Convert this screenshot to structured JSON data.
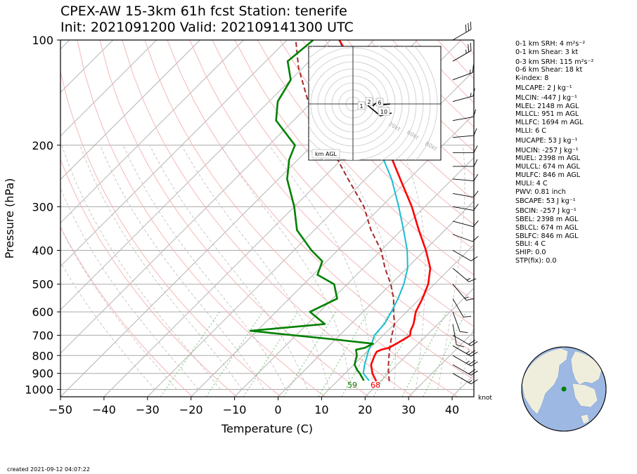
{
  "title_line1": "CPEX-AW 15-3km  61h fcst  Station: tenerife",
  "title_line2": "Init: 2021091200  Valid: 202109141300 UTC",
  "footer": "created 2021-09-12 04:07:22",
  "wind_unit": "knot",
  "indices": [
    "0-1 km SRH: 4 m²s⁻²",
    "0-1 km Shear: 3 kt",
    "0-3 km SRH: 115 m²s⁻²",
    "0-6 km Shear: 18 kt",
    "K-index: 8",
    "MLCAPE: 2 J kg⁻¹",
    "MLCIN: -447 J kg⁻¹",
    "MLEL: 2148 m AGL",
    "MLLCL: 951 m AGL",
    "MLLFC: 1694 m AGL",
    "MLLI: 6 C",
    "MUCAPE: 53 J kg⁻¹",
    "MUCIN: -257 J kg⁻¹",
    "MUEL: 2398 m AGL",
    "MULCL: 674 m AGL",
    "MULFC: 846 m AGL",
    "MULI: 4 C",
    "PWV: 0.81 inch",
    "SBCAPE: 53 J kg⁻¹",
    "SBCIN: -257 J kg⁻¹",
    "SBEL: 2398 m AGL",
    "SBLCL: 674 m AGL",
    "SBLFC: 846 m AGL",
    "SBLI: 4 C",
    "SHIP: 0.0",
    "STP(fix): 0.0"
  ],
  "colors": {
    "temperature": "#ff0000",
    "dewpoint": "#008000",
    "wetbulb": "#17becf",
    "parcel": "#a52a2a",
    "isobar": "#b0b0b0",
    "dry_adiabat": "#f4b8b8",
    "mixing_ratio": "#66bb66",
    "ocean": "#9db8e3",
    "land": "#efeedd"
  },
  "chart_data": {
    "type": "line",
    "subtype": "skew-T log-p",
    "xlabel": "Temperature (C)",
    "ylabel": "Pressure (hPa)",
    "xlim": [
      -50,
      45
    ],
    "ylim": [
      1050,
      100
    ],
    "y_scale": "log",
    "x_ticks": [
      -50,
      -40,
      -30,
      -20,
      -10,
      0,
      10,
      20,
      30,
      40
    ],
    "x_tick_labels": [
      "−50",
      "−40",
      "−30",
      "−20",
      "−10",
      "0",
      "10",
      "20",
      "30",
      "40"
    ],
    "y_ticks": [
      100,
      200,
      300,
      400,
      500,
      600,
      700,
      800,
      900,
      1000
    ],
    "y_tick_labels": [
      "100",
      "200",
      "300",
      "400",
      "500",
      "600",
      "700",
      "800",
      "900",
      "1000"
    ],
    "surface_labels": {
      "temperature": "68",
      "dewpoint": "59"
    },
    "series": [],
    "profiles": {
      "temperature": [
        [
          948,
          19
        ],
        [
          930,
          18
        ],
        [
          900,
          16.3
        ],
        [
          850,
          14
        ],
        [
          800,
          12.7
        ],
        [
          780,
          12.3
        ],
        [
          770,
          12.9
        ],
        [
          760,
          14.2
        ],
        [
          740,
          15
        ],
        [
          710,
          16
        ],
        [
          700,
          16.2
        ],
        [
          680,
          15.3
        ],
        [
          650,
          14.4
        ],
        [
          600,
          12.1
        ],
        [
          550,
          10.6
        ],
        [
          500,
          8.6
        ],
        [
          450,
          5.4
        ],
        [
          400,
          0.3
        ],
        [
          350,
          -6
        ],
        [
          300,
          -13
        ],
        [
          250,
          -22
        ],
        [
          200,
          -33
        ],
        [
          170,
          -40
        ],
        [
          150,
          -46
        ],
        [
          120,
          -58
        ],
        [
          100,
          -68
        ]
      ],
      "dewpoint": [
        [
          944,
          16
        ],
        [
          900,
          13.4
        ],
        [
          880,
          12
        ],
        [
          850,
          10.2
        ],
        [
          800,
          8.6
        ],
        [
          770,
          7.1
        ],
        [
          760,
          8.7
        ],
        [
          740,
          9.6
        ],
        [
          720,
          0
        ],
        [
          680,
          -21.5
        ],
        [
          650,
          -6
        ],
        [
          600,
          -12.2
        ],
        [
          550,
          -9
        ],
        [
          500,
          -13
        ],
        [
          470,
          -19
        ],
        [
          430,
          -21
        ],
        [
          400,
          -26
        ],
        [
          350,
          -34
        ],
        [
          300,
          -40
        ],
        [
          250,
          -48
        ],
        [
          220,
          -52
        ],
        [
          200,
          -54
        ],
        [
          170,
          -64
        ],
        [
          150,
          -68
        ],
        [
          130,
          -70
        ],
        [
          115,
          -75
        ],
        [
          100,
          -74
        ]
      ],
      "wetbulb": [
        [
          944,
          17.2
        ],
        [
          900,
          14.2
        ],
        [
          850,
          12.5
        ],
        [
          800,
          11
        ],
        [
          770,
          10
        ],
        [
          740,
          9.3
        ],
        [
          700,
          8
        ],
        [
          650,
          7.7
        ],
        [
          600,
          6.5
        ],
        [
          550,
          5
        ],
        [
          500,
          3
        ],
        [
          450,
          0.2
        ],
        [
          400,
          -4
        ],
        [
          350,
          -9.5
        ],
        [
          300,
          -16
        ],
        [
          250,
          -24
        ],
        [
          200,
          -35
        ],
        [
          170,
          -42
        ],
        [
          150,
          -48
        ],
        [
          120,
          -59
        ],
        [
          100,
          -68
        ]
      ],
      "parcel": [
        [
          948,
          22
        ],
        [
          900,
          20
        ],
        [
          850,
          18
        ],
        [
          800,
          16
        ],
        [
          750,
          14
        ],
        [
          700,
          12
        ],
        [
          650,
          10
        ],
        [
          600,
          7
        ],
        [
          550,
          4
        ],
        [
          500,
          0
        ],
        [
          450,
          -5
        ],
        [
          400,
          -10
        ],
        [
          350,
          -17
        ],
        [
          300,
          -24
        ],
        [
          250,
          -34
        ],
        [
          200,
          -46
        ],
        [
          150,
          -61
        ],
        [
          120,
          -71
        ],
        [
          100,
          -78
        ]
      ]
    },
    "hodograph": {
      "range_label": "km AGL",
      "speed_rings_kt": [
        "20kt",
        "60kt",
        "80kt"
      ],
      "height_labels": [
        "1",
        "2",
        "6",
        "10"
      ]
    },
    "wind_barbs": [
      {
        "p": 100,
        "dir": 240,
        "spd": 30
      },
      {
        "p": 115,
        "dir": 240,
        "spd": 25
      },
      {
        "p": 130,
        "dir": 250,
        "spd": 15
      },
      {
        "p": 150,
        "dir": 255,
        "spd": 15
      },
      {
        "p": 170,
        "dir": 260,
        "spd": 10
      },
      {
        "p": 190,
        "dir": 265,
        "spd": 10
      },
      {
        "p": 210,
        "dir": 270,
        "spd": 10
      },
      {
        "p": 230,
        "dir": 270,
        "spd": 10
      },
      {
        "p": 250,
        "dir": 275,
        "spd": 10
      },
      {
        "p": 275,
        "dir": 280,
        "spd": 10
      },
      {
        "p": 300,
        "dir": 280,
        "spd": 10
      },
      {
        "p": 330,
        "dir": 285,
        "spd": 10
      },
      {
        "p": 360,
        "dir": 290,
        "spd": 10
      },
      {
        "p": 400,
        "dir": 300,
        "spd": 10
      },
      {
        "p": 450,
        "dir": 310,
        "spd": 15
      },
      {
        "p": 500,
        "dir": 320,
        "spd": 15
      },
      {
        "p": 550,
        "dir": 330,
        "spd": 10
      },
      {
        "p": 600,
        "dir": 340,
        "spd": 10
      },
      {
        "p": 650,
        "dir": 350,
        "spd": 10
      },
      {
        "p": 700,
        "dir": 300,
        "spd": 20
      },
      {
        "p": 750,
        "dir": 300,
        "spd": 25
      },
      {
        "p": 800,
        "dir": 300,
        "spd": 25
      },
      {
        "p": 850,
        "dir": 300,
        "spd": 20
      },
      {
        "p": 900,
        "dir": 300,
        "spd": 15
      }
    ]
  }
}
